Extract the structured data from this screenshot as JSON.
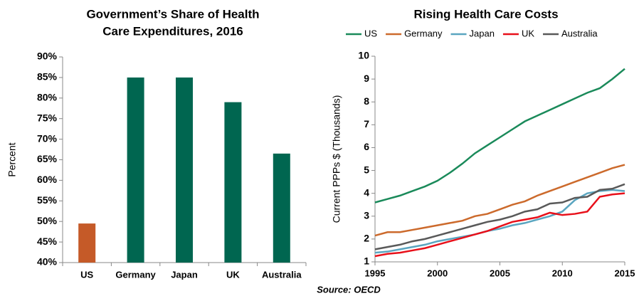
{
  "chart_data": [
    {
      "type": "bar",
      "title": [
        "Government’s Share of Health",
        "Care Expenditures, 2016"
      ],
      "y_label": "Percent",
      "categories": [
        "US",
        "Germany",
        "Japan",
        "UK",
        "Australia"
      ],
      "values": [
        49.5,
        85,
        85,
        79,
        66.5
      ],
      "colors": [
        "#c55a28",
        "#006650",
        "#006650",
        "#006650",
        "#006650"
      ],
      "ylim": [
        40,
        90
      ],
      "yticks": [
        {
          "value": 40,
          "label": "40%"
        },
        {
          "value": 45,
          "label": "45%"
        },
        {
          "value": 50,
          "label": "50%"
        },
        {
          "value": 55,
          "label": "55%"
        },
        {
          "value": 60,
          "label": "60%"
        },
        {
          "value": 65,
          "label": "65%"
        },
        {
          "value": 70,
          "label": "70%"
        },
        {
          "value": 75,
          "label": "75%"
        },
        {
          "value": 80,
          "label": "80%"
        },
        {
          "value": 85,
          "label": "85%"
        },
        {
          "value": 90,
          "label": "90%"
        }
      ],
      "grid": false
    },
    {
      "type": "line",
      "title": [
        "Rising Health Care Costs"
      ],
      "y_label": "Current PPPs $ (Thousands)",
      "x": [
        1995,
        1996,
        1997,
        1998,
        1999,
        2000,
        2001,
        2002,
        2003,
        2004,
        2005,
        2006,
        2007,
        2008,
        2009,
        2010,
        2011,
        2012,
        2013,
        2014,
        2015
      ],
      "xlim": [
        1995,
        2015
      ],
      "xticks": [
        1995,
        2000,
        2005,
        2010,
        2015
      ],
      "ylim": [
        1,
        10
      ],
      "yticks": [
        1,
        2,
        3,
        4,
        5,
        6,
        7,
        8,
        9,
        10
      ],
      "grid": false,
      "legend": "top",
      "series": [
        {
          "name": "US",
          "color": "#1a8a5a",
          "values": [
            3.6,
            3.75,
            3.9,
            4.1,
            4.3,
            4.55,
            4.9,
            5.3,
            5.75,
            6.1,
            6.45,
            6.8,
            7.15,
            7.4,
            7.65,
            7.9,
            8.15,
            8.4,
            8.6,
            9.0,
            9.45
          ]
        },
        {
          "name": "Germany",
          "color": "#cc6a2c",
          "values": [
            2.15,
            2.3,
            2.3,
            2.4,
            2.5,
            2.6,
            2.7,
            2.8,
            3.0,
            3.1,
            3.3,
            3.5,
            3.65,
            3.9,
            4.1,
            4.3,
            4.5,
            4.7,
            4.9,
            5.1,
            5.25
          ]
        },
        {
          "name": "Japan",
          "color": "#5aa5c0",
          "values": [
            1.4,
            1.45,
            1.55,
            1.65,
            1.75,
            1.9,
            2.0,
            2.1,
            2.2,
            2.35,
            2.45,
            2.6,
            2.7,
            2.85,
            3.0,
            3.2,
            3.7,
            4.0,
            4.1,
            4.15,
            4.1
          ]
        },
        {
          "name": "UK",
          "color": "#e8101a",
          "values": [
            1.25,
            1.35,
            1.4,
            1.5,
            1.6,
            1.75,
            1.9,
            2.05,
            2.2,
            2.35,
            2.55,
            2.75,
            2.85,
            2.95,
            3.15,
            3.05,
            3.1,
            3.2,
            3.85,
            3.95,
            4.0
          ]
        },
        {
          "name": "Australia",
          "color": "#595959",
          "values": [
            1.55,
            1.65,
            1.75,
            1.9,
            2.0,
            2.15,
            2.3,
            2.45,
            2.6,
            2.75,
            2.85,
            3.0,
            3.2,
            3.3,
            3.55,
            3.6,
            3.8,
            3.85,
            4.15,
            4.2,
            4.4
          ]
        }
      ]
    }
  ],
  "source": "Source: OECD"
}
